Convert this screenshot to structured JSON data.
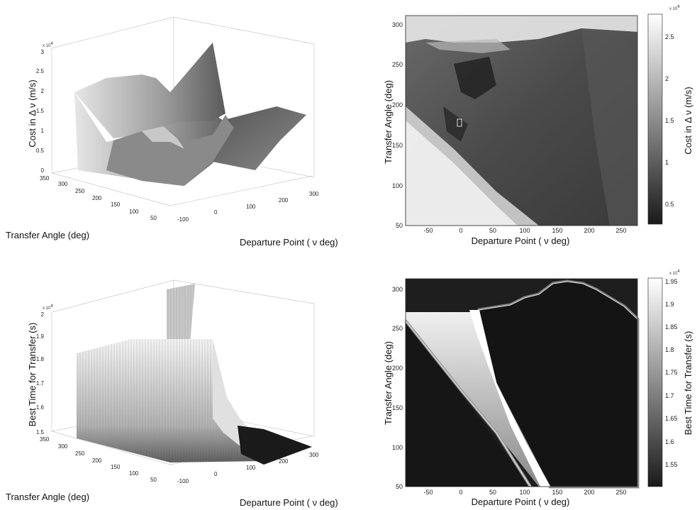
{
  "chart_data": [
    {
      "panel": "top-left",
      "type": "surface",
      "xlabel": "Departure Point ( ν deg)",
      "ylabel": "Transfer Angle (deg)",
      "zlabel": "Cost in Δ ν (m/s)",
      "x_ticks": [
        "-100",
        "0",
        "100",
        "200",
        "300"
      ],
      "y_ticks": [
        "50",
        "100",
        "150",
        "200",
        "250",
        "300",
        "350"
      ],
      "z_ticks": [
        "0",
        "0.5",
        "1",
        "1.5",
        "2",
        "2.5",
        "3"
      ],
      "z_multiplier": "x 10",
      "z_multiplier_exp": "4",
      "xlim": [
        -100,
        300
      ],
      "ylim": [
        50,
        350
      ],
      "zlim": [
        0,
        30000
      ]
    },
    {
      "panel": "top-right",
      "type": "heatmap",
      "xlabel": "Departure Point ( ν deg)",
      "ylabel": "Transfer Angle (deg)",
      "colorbar_label": "Cost in Δ ν (m/s)",
      "x_ticks": [
        "-50",
        "0",
        "50",
        "100",
        "150",
        "200",
        "250"
      ],
      "y_ticks": [
        "50",
        "100",
        "150",
        "200",
        "250",
        "300"
      ],
      "colorbar_ticks": [
        "0.5",
        "1",
        "1.5",
        "2",
        "2.5"
      ],
      "colorbar_multiplier": "x 10",
      "colorbar_multiplier_exp": "4",
      "xlim": [
        -80,
        270
      ],
      "ylim": [
        50,
        310
      ],
      "colormap": "gray"
    },
    {
      "panel": "bottom-left",
      "type": "surface",
      "xlabel": "Departure Point ( ν deg)",
      "ylabel": "Transfer Angle (deg)",
      "zlabel": "Best Time for Transfer (s)",
      "x_ticks": [
        "-100",
        "0",
        "100",
        "200",
        "300"
      ],
      "y_ticks": [
        "50",
        "100",
        "150",
        "200",
        "250",
        "300",
        "350"
      ],
      "z_ticks": [
        "1.5",
        "1.6",
        "1.7",
        "1.8",
        "1.9",
        "2"
      ],
      "z_multiplier": "x 10",
      "z_multiplier_exp": "4",
      "xlim": [
        -100,
        300
      ],
      "ylim": [
        50,
        350
      ],
      "zlim": [
        15000,
        20000
      ]
    },
    {
      "panel": "bottom-right",
      "type": "heatmap",
      "xlabel": "Departure Point ( ν deg)",
      "ylabel": "Transfer Angle (deg)",
      "colorbar_label": "Best Time for Transfer (s)",
      "x_ticks": [
        "-50",
        "0",
        "50",
        "100",
        "150",
        "200",
        "250"
      ],
      "y_ticks": [
        "50",
        "100",
        "150",
        "200",
        "250",
        "300"
      ],
      "colorbar_ticks": [
        "1.55",
        "1.6",
        "1.65",
        "1.7",
        "1.75",
        "1.8",
        "1.85",
        "1.9",
        "1.95"
      ],
      "colorbar_multiplier": "x 10",
      "colorbar_multiplier_exp": "4",
      "xlim": [
        -80,
        270
      ],
      "ylim": [
        50,
        310
      ],
      "colormap": "gray"
    }
  ]
}
